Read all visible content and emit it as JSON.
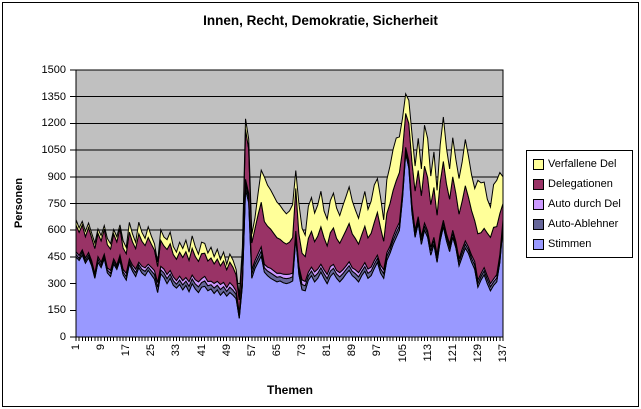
{
  "title": "Innen, Recht, Demokratie, Sicherheit",
  "y_axis": {
    "title": "Personen",
    "tick_labels": [
      "0",
      "150",
      "300",
      "450",
      "600",
      "750",
      "900",
      "1050",
      "1200",
      "1350",
      "1500"
    ]
  },
  "x_axis": {
    "title": "Themen",
    "tick_labels": [
      "1",
      "9",
      "17",
      "25",
      "33",
      "41",
      "49",
      "57",
      "65",
      "73",
      "81",
      "89",
      "97",
      "105",
      "113",
      "121",
      "129",
      "137"
    ]
  },
  "legend": {
    "items": [
      {
        "label": "Verfallene Del",
        "color": "#FFFF99"
      },
      {
        "label": "Delegationen",
        "color": "#993366"
      },
      {
        "label": "Auto durch Del",
        "color": "#CC99FF"
      },
      {
        "label": "Auto-Ablehner",
        "color": "#666699"
      },
      {
        "label": "Stimmen",
        "color": "#9999FF"
      }
    ]
  },
  "colors": {
    "plot_background": "#C0C0C0",
    "gridline": "#000000",
    "axis": "#000000",
    "series_outline": "#000000",
    "chart_background": "#FFFFFF"
  },
  "chart_data": {
    "type": "area",
    "stacked": true,
    "title": "Innen, Recht, Demokratie, Sicherheit",
    "xlabel": "Themen",
    "ylabel": "Personen",
    "ylim": [
      0,
      1500
    ],
    "y_tick_step": 150,
    "x_count": 137,
    "x_first": 1,
    "x_tick_step": 8,
    "x_tick_labels": [
      "1",
      "9",
      "17",
      "25",
      "33",
      "41",
      "49",
      "57",
      "65",
      "73",
      "81",
      "89",
      "97",
      "105",
      "113",
      "121",
      "129",
      "137"
    ],
    "grid": true,
    "legend_position": "right",
    "series": [
      {
        "name": "Stimmen",
        "color": "#9999FF",
        "values": [
          450,
          430,
          460,
          415,
          445,
          400,
          330,
          420,
          390,
          440,
          360,
          340,
          410,
          380,
          430,
          350,
          320,
          410,
          370,
          340,
          390,
          360,
          345,
          375,
          350,
          325,
          250,
          355,
          335,
          300,
          330,
          290,
          275,
          295,
          265,
          290,
          255,
          300,
          270,
          250,
          280,
          285,
          260,
          270,
          245,
          265,
          235,
          255,
          230,
          250,
          235,
          215,
          105,
          290,
          830,
          755,
          330,
          385,
          420,
          455,
          365,
          345,
          330,
          320,
          310,
          315,
          305,
          300,
          305,
          315,
          555,
          350,
          265,
          260,
          320,
          345,
          310,
          330,
          365,
          330,
          300,
          340,
          360,
          330,
          310,
          330,
          355,
          375,
          345,
          330,
          310,
          345,
          370,
          330,
          345,
          385,
          420,
          360,
          330,
          430,
          470,
          520,
          560,
          600,
          780,
          1030,
          950,
          700,
          560,
          640,
          520,
          600,
          560,
          460,
          520,
          420,
          540,
          620,
          540,
          480,
          560,
          500,
          400,
          450,
          500,
          470,
          420,
          380,
          280,
          320,
          350,
          300,
          260,
          290,
          310,
          420,
          620
        ]
      },
      {
        "name": "Auto-Ablehner",
        "color": "#666699",
        "values": [
          15,
          12,
          18,
          14,
          16,
          12,
          15,
          18,
          14,
          12,
          16,
          18,
          15,
          12,
          14,
          16,
          20,
          15,
          18,
          22,
          16,
          20,
          24,
          18,
          22,
          26,
          30,
          22,
          25,
          28,
          24,
          26,
          22,
          25,
          28,
          24,
          30,
          26,
          28,
          32,
          26,
          30,
          28,
          24,
          30,
          26,
          32,
          28,
          26,
          30,
          28,
          24,
          18,
          26,
          30,
          28,
          26,
          24,
          26,
          28,
          24,
          26,
          30,
          28,
          26,
          24,
          26,
          28,
          26,
          24,
          22,
          26,
          30,
          28,
          24,
          26,
          30,
          28,
          24,
          26,
          28,
          30,
          26,
          24,
          28,
          26,
          24,
          26,
          24,
          26,
          28,
          24,
          26,
          28,
          26,
          24,
          22,
          24,
          26,
          24,
          22,
          24,
          26,
          24,
          22,
          20,
          22,
          24,
          22,
          20,
          24,
          22,
          20,
          24,
          22,
          24,
          22,
          20,
          22,
          24,
          22,
          20,
          22,
          24,
          22,
          20,
          22,
          24,
          22,
          20,
          22,
          24,
          22,
          20,
          22,
          24,
          22
        ]
      },
      {
        "name": "Auto durch Del",
        "color": "#CC99FF",
        "values": [
          14,
          16,
          12,
          15,
          14,
          16,
          12,
          14,
          16,
          14,
          12,
          16,
          14,
          12,
          16,
          14,
          18,
          14,
          16,
          20,
          14,
          18,
          20,
          16,
          20,
          22,
          26,
          20,
          22,
          24,
          20,
          22,
          20,
          22,
          24,
          20,
          26,
          22,
          24,
          28,
          22,
          26,
          24,
          20,
          26,
          22,
          28,
          24,
          22,
          26,
          24,
          20,
          15,
          22,
          26,
          24,
          22,
          20,
          22,
          24,
          20,
          22,
          26,
          24,
          22,
          20,
          22,
          24,
          22,
          20,
          18,
          22,
          26,
          24,
          20,
          22,
          26,
          24,
          20,
          22,
          24,
          26,
          22,
          20,
          24,
          22,
          20,
          22,
          20,
          22,
          24,
          20,
          22,
          24,
          22,
          20,
          18,
          20,
          22,
          20,
          18,
          20,
          22,
          20,
          18,
          16,
          18,
          20,
          18,
          16,
          20,
          18,
          16,
          20,
          18,
          20,
          18,
          16,
          18,
          20,
          18,
          16,
          18,
          20,
          18,
          16,
          18,
          20,
          18,
          16,
          18,
          20,
          18,
          16,
          18,
          20,
          18
        ]
      },
      {
        "name": "Delegationen",
        "color": "#993366",
        "values": [
          150,
          130,
          140,
          120,
          140,
          130,
          140,
          130,
          120,
          140,
          130,
          120,
          140,
          130,
          150,
          120,
          110,
          150,
          130,
          115,
          160,
          140,
          125,
          150,
          130,
          115,
          90,
          145,
          130,
          140,
          150,
          125,
          120,
          135,
          130,
          145,
          120,
          150,
          130,
          115,
          140,
          130,
          115,
          130,
          110,
          125,
          105,
          120,
          100,
          115,
          105,
          90,
          70,
          120,
          280,
          250,
          150,
          180,
          220,
          250,
          240,
          230,
          220,
          210,
          200,
          190,
          180,
          170,
          180,
          200,
          240,
          180,
          150,
          140,
          190,
          200,
          170,
          185,
          210,
          180,
          160,
          190,
          205,
          180,
          165,
          185,
          200,
          215,
          190,
          175,
          160,
          185,
          205,
          175,
          190,
          215,
          240,
          210,
          160,
          220,
          240,
          260,
          270,
          280,
          230,
          190,
          210,
          240,
          220,
          260,
          230,
          320,
          300,
          240,
          280,
          220,
          290,
          330,
          280,
          250,
          300,
          270,
          250,
          270,
          310,
          280,
          250,
          230,
          260,
          230,
          220,
          240,
          260,
          290,
          270,
          230,
          90
        ]
      },
      {
        "name": "Verfallene Del",
        "color": "#FFFF99",
        "values": [
          30,
          25,
          20,
          30,
          25,
          25,
          30,
          25,
          30,
          20,
          35,
          30,
          25,
          30,
          20,
          40,
          35,
          55,
          45,
          35,
          65,
          50,
          40,
          60,
          45,
          35,
          25,
          60,
          50,
          55,
          65,
          45,
          40,
          55,
          50,
          65,
          45,
          70,
          55,
          40,
          65,
          55,
          45,
          60,
          40,
          55,
          35,
          50,
          30,
          45,
          40,
          30,
          25,
          45,
          60,
          55,
          50,
          60,
          120,
          180,
          250,
          230,
          220,
          210,
          200,
          190,
          180,
          170,
          175,
          185,
          100,
          170,
          140,
          120,
          180,
          190,
          160,
          175,
          200,
          150,
          150,
          180,
          195,
          170,
          155,
          175,
          190,
          205,
          185,
          160,
          145,
          170,
          195,
          160,
          180,
          210,
          190,
          170,
          120,
          190,
          210,
          230,
          240,
          200,
          180,
          110,
          130,
          160,
          140,
          180,
          150,
          230,
          220,
          160,
          200,
          140,
          210,
          250,
          200,
          170,
          220,
          190,
          200,
          220,
          260,
          230,
          200,
          180,
          300,
          280,
          260,
          190,
          170,
          240,
          260,
          230,
          150
        ]
      }
    ]
  }
}
